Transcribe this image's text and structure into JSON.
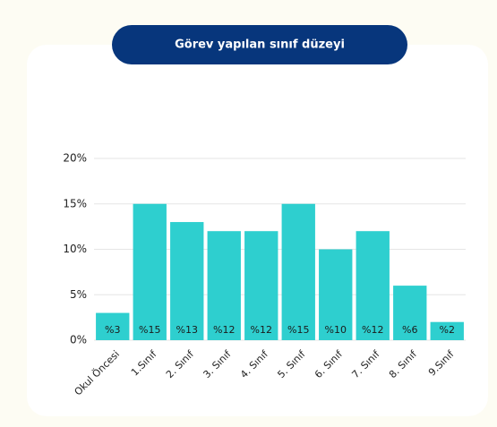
{
  "chart_data": {
    "type": "bar",
    "title": "Görev yapılan sınıf düzeyi",
    "categories": [
      "Okul Öncesi",
      "1.Sınıf",
      "2. Sınıf",
      "3. Sınıf",
      "4. Sınıf",
      "5. Sınıf",
      "6. Sınıf",
      "7. Sınıf",
      "8. Sınıf",
      "9.Sınıf"
    ],
    "values": [
      3,
      15,
      13,
      12,
      12,
      15,
      10,
      12,
      6,
      2
    ],
    "value_labels": [
      "%3",
      "%15",
      "%13",
      "%12",
      "%12",
      "%15",
      "%10",
      "%12",
      "%6",
      "%2"
    ],
    "color": "#2ecfcf",
    "ylim": [
      0,
      20
    ],
    "yticks": [
      {
        "value": 0,
        "label": "0%"
      },
      {
        "value": 5,
        "label": "5%"
      },
      {
        "value": 10,
        "label": "10%"
      },
      {
        "value": 15,
        "label": "15%"
      },
      {
        "value": 20,
        "label": "20%"
      }
    ],
    "grid": true
  }
}
